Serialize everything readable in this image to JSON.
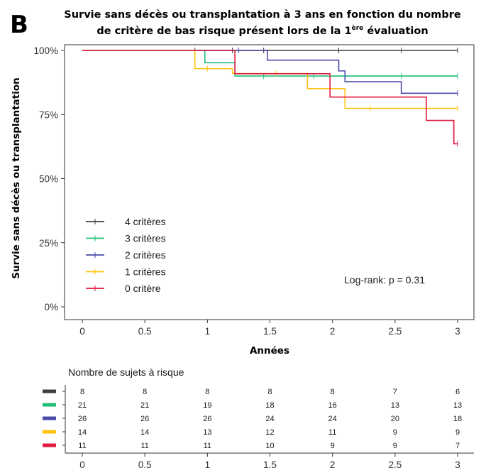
{
  "panel_label": "B",
  "chart_data": {
    "type": "line",
    "step": true,
    "title": "Survie sans décès ou transplantation à 3 ans en fonction du nombre de critère de bas risque présent lors de la 1ère évaluation",
    "title_line1": "Survie sans décès ou transplantation à 3 ans en fonction du nombre",
    "title_line2_pre": "de critère de bas risque présent lors de la 1",
    "title_line2_sup": "ère",
    "title_line2_post": " évaluation",
    "xlabel": "Années",
    "ylabel": "Survie sans décès ou transplantation",
    "xlim": [
      0,
      3
    ],
    "ylim": [
      0,
      100
    ],
    "x_ticks": [
      0,
      0.5,
      1,
      1.5,
      2,
      2.5,
      3
    ],
    "x_tick_labels": [
      "0",
      "0.5",
      "1",
      "1.5",
      "2",
      "2.5",
      "3"
    ],
    "y_ticks": [
      0,
      25,
      50,
      75,
      100
    ],
    "y_tick_labels": [
      "0%",
      "25%",
      "50%",
      "75%",
      "100%"
    ],
    "legend_position": "bottom-left",
    "annotation": "Log-rank: p = 0.31",
    "series": [
      {
        "name": "4 critères",
        "color": "#3d3d3d",
        "steps": [
          [
            0,
            100
          ]
        ],
        "censor": [
          [
            0.9,
            100
          ],
          [
            1.2,
            100
          ],
          [
            1.45,
            100
          ],
          [
            2.05,
            100
          ],
          [
            2.55,
            100
          ],
          [
            3.0,
            100
          ]
        ]
      },
      {
        "name": "3 critères",
        "color": "#1fbf7a",
        "steps": [
          [
            0,
            100
          ],
          [
            0.98,
            95.2
          ],
          [
            1.22,
            90.0
          ]
        ],
        "censor": [
          [
            1.45,
            90.0
          ],
          [
            1.85,
            90.0
          ],
          [
            2.1,
            90.0
          ],
          [
            2.55,
            90.0
          ],
          [
            3.0,
            90.0
          ]
        ]
      },
      {
        "name": "2 critères",
        "color": "#4a4aa8",
        "steps": [
          [
            0,
            100
          ],
          [
            1.48,
            96.2
          ],
          [
            2.05,
            92.0
          ],
          [
            2.1,
            87.8
          ],
          [
            2.55,
            83.3
          ]
        ],
        "censor": [
          [
            1.25,
            100
          ],
          [
            3.0,
            83.3
          ]
        ]
      },
      {
        "name": "1 critères",
        "color": "#ffc20e",
        "steps": [
          [
            0,
            100
          ],
          [
            0.9,
            92.9
          ],
          [
            1.2,
            91.0
          ],
          [
            1.8,
            85.1
          ],
          [
            2.1,
            77.4
          ]
        ],
        "censor": [
          [
            1.0,
            92.9
          ],
          [
            1.55,
            91.0
          ],
          [
            2.3,
            77.4
          ],
          [
            3.0,
            77.4
          ]
        ]
      },
      {
        "name": "0 critère",
        "color": "#e01a3f",
        "steps": [
          [
            0,
            100
          ],
          [
            1.22,
            90.9
          ],
          [
            1.98,
            81.8
          ],
          [
            2.75,
            72.7
          ],
          [
            2.97,
            63.6
          ]
        ],
        "censor": [
          [
            3.0,
            63.6
          ]
        ]
      }
    ],
    "risk_table": {
      "title": "Nombre de sujets à risque",
      "times": [
        "0",
        "0.5",
        "1",
        "1.5",
        "2",
        "2.5",
        "3"
      ],
      "rows": [
        {
          "color": "#3d3d3d",
          "values": [
            8,
            8,
            8,
            8,
            8,
            7,
            6
          ]
        },
        {
          "color": "#1fbf7a",
          "values": [
            21,
            21,
            19,
            18,
            16,
            13,
            13
          ]
        },
        {
          "color": "#4a4aa8",
          "values": [
            26,
            26,
            26,
            24,
            24,
            20,
            18
          ]
        },
        {
          "color": "#ffc20e",
          "values": [
            14,
            14,
            13,
            12,
            11,
            9,
            9
          ]
        },
        {
          "color": "#e01a3f",
          "values": [
            11,
            11,
            11,
            10,
            9,
            9,
            7
          ]
        }
      ]
    }
  }
}
